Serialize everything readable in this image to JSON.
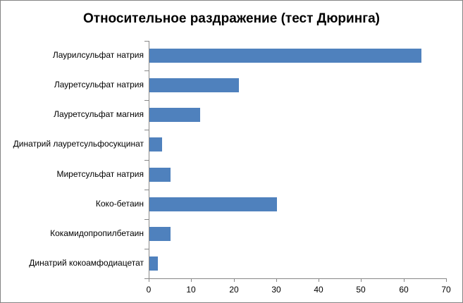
{
  "window": {
    "background_color": "#ffffff",
    "border_color": "#848484"
  },
  "chart_data": {
    "type": "bar",
    "orientation": "horizontal",
    "title": "Относительное раздражение (тест Дюринга)",
    "categories": [
      "Лаурилсульфат натрия",
      "Лауретсульфат натрия",
      "Лауретсульфат магния",
      "Динатрий лауретсульфосукцинат",
      "Миретсульфат натрия",
      "Коко-бетаин",
      "Кокамидопропилбетаин",
      "Динатрий кокоамфодиацетат"
    ],
    "values": [
      64,
      21,
      12,
      3,
      5,
      30,
      5,
      2
    ],
    "xlabel": "",
    "ylabel": "",
    "xlim": [
      0,
      70
    ],
    "x_ticks": [
      0,
      10,
      20,
      30,
      40,
      50,
      60,
      70
    ],
    "grid": false,
    "legend": false,
    "bar_color": "#4F81BD",
    "axis_color": "#878787",
    "text_color": "#000000"
  }
}
